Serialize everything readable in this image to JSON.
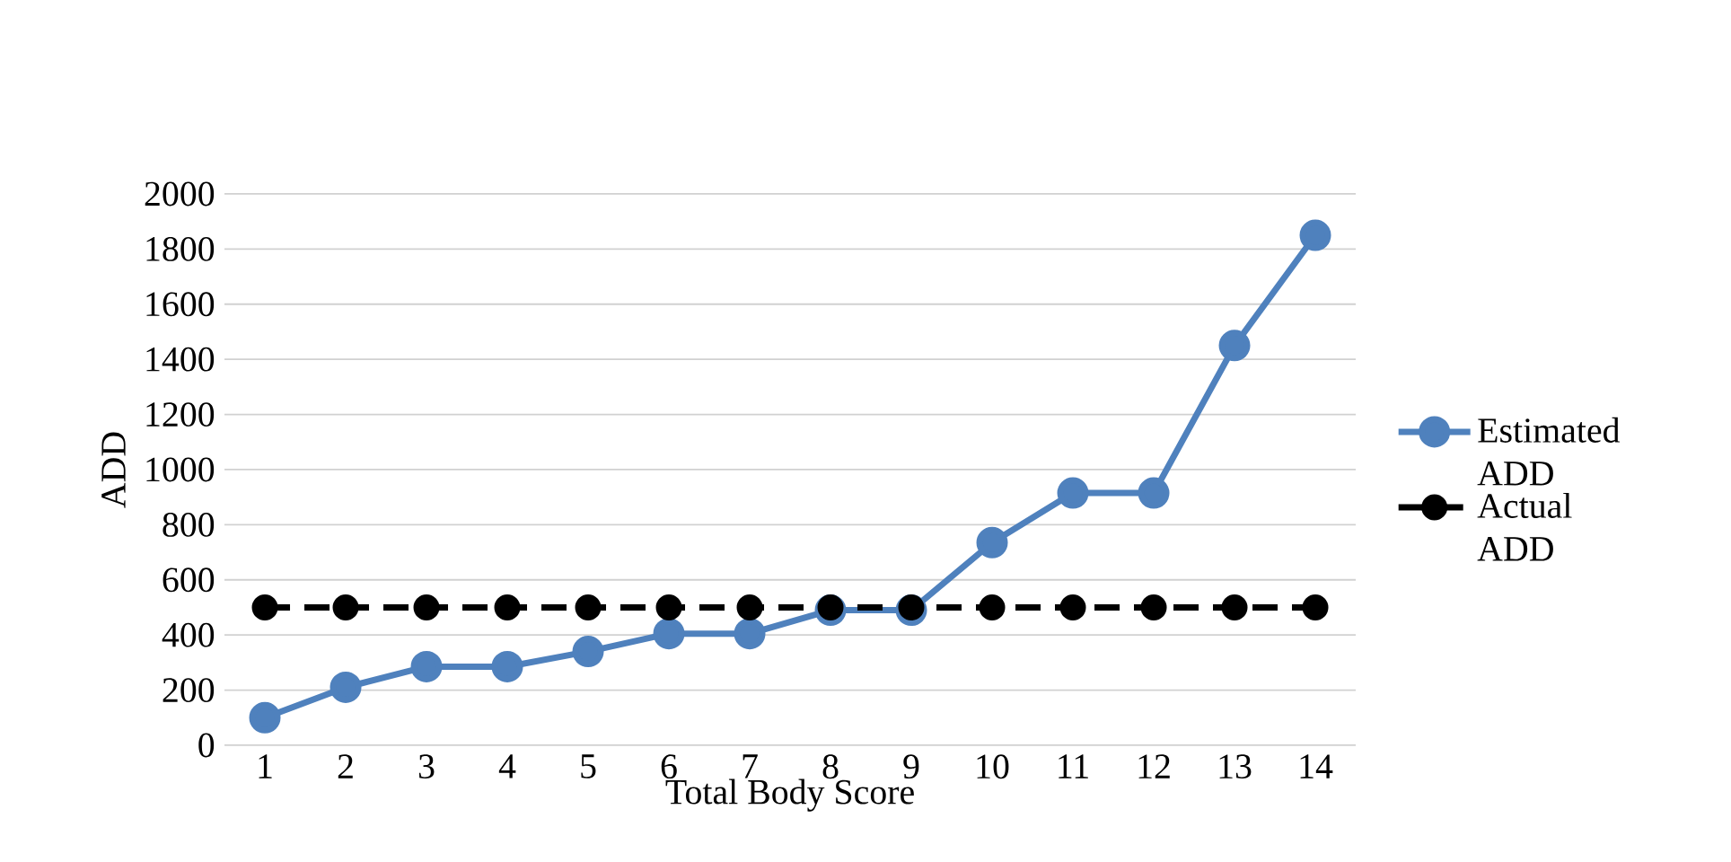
{
  "chart_data": {
    "type": "line",
    "xlabel": "Total Body Score",
    "ylabel": "ADD",
    "categories": [
      "1",
      "2",
      "3",
      "4",
      "5",
      "6",
      "7",
      "8",
      "9",
      "10",
      "11",
      "12",
      "13",
      "14"
    ],
    "series": [
      {
        "name": "Estimated ADD",
        "color": "#4f81bd",
        "line_style": "solid",
        "values": [
          100,
          210,
          285,
          285,
          340,
          405,
          405,
          490,
          490,
          735,
          915,
          915,
          1450,
          1850
        ]
      },
      {
        "name": "Actual ADD",
        "color": "#000000",
        "line_style": "dashed",
        "values": [
          500,
          500,
          500,
          500,
          500,
          500,
          500,
          500,
          500,
          500,
          500,
          500,
          500,
          500
        ]
      }
    ],
    "ylim": [
      0,
      2000
    ],
    "yticks": [
      0,
      200,
      400,
      600,
      800,
      1000,
      1200,
      1400,
      1600,
      1800,
      2000
    ],
    "grid": "y",
    "legend": "right",
    "marker": "circle"
  }
}
